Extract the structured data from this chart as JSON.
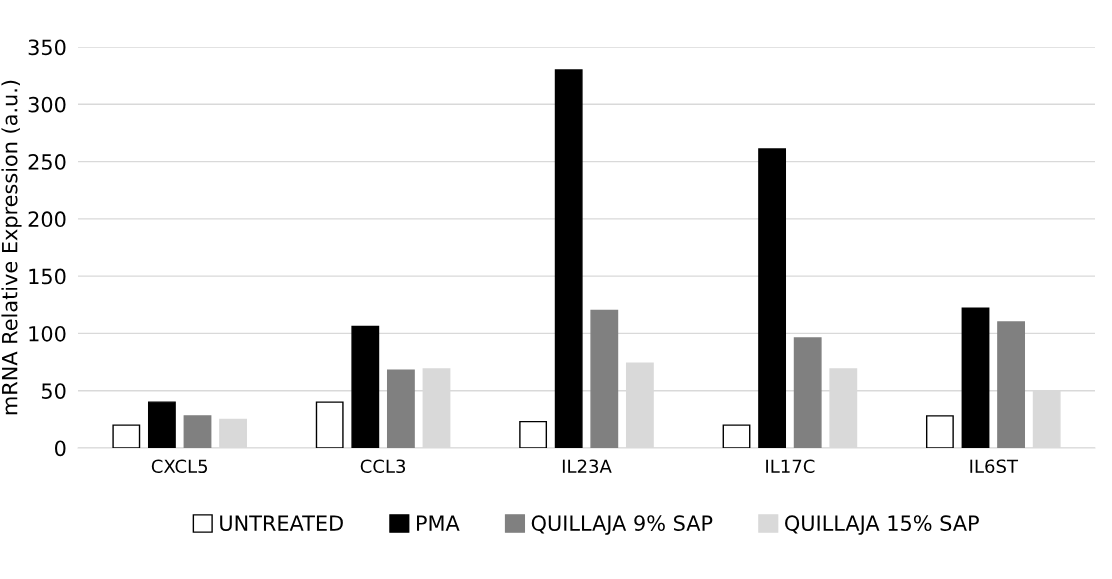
{
  "chart_data": {
    "type": "bar",
    "ylabel": "mRNA Relative Expression (a.u.)",
    "categories": [
      "CXCL5",
      "CCL3",
      "IL23A",
      "IL17C",
      "IL6ST"
    ],
    "series": [
      {
        "name": "UNTREATED",
        "color": "#ffffff",
        "values": [
          20,
          40,
          23,
          20,
          28
        ]
      },
      {
        "name": "PMA",
        "color": "#000000",
        "values": [
          40,
          106,
          330,
          261,
          122
        ]
      },
      {
        "name": "QUILLAJA 9% SAP",
        "color": "#808080",
        "values": [
          28,
          68,
          120,
          96,
          110
        ]
      },
      {
        "name": "QUILLAJA 15% SAP",
        "color": "#d9d9d9",
        "values": [
          25,
          69,
          74,
          69,
          50
        ]
      }
    ],
    "ylim": [
      0,
      350
    ],
    "yticks": [
      0,
      50,
      100,
      150,
      200,
      250,
      300,
      350
    ],
    "grid": "y",
    "legend": "bottom"
  }
}
